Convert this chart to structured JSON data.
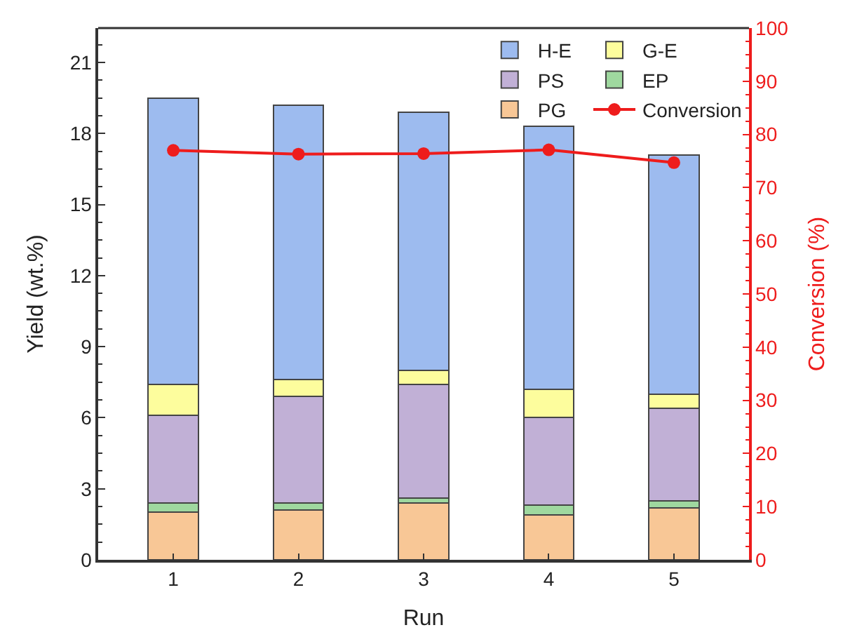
{
  "chart_data": {
    "type": "bar",
    "stacked": true,
    "xlabel": "Run",
    "ylabel": "Yield (wt.%)",
    "y2label": "Conversion (%)",
    "categories": [
      "1",
      "2",
      "3",
      "4",
      "5"
    ],
    "series": [
      {
        "name": "PG",
        "color": "#f8c796",
        "values": [
          2.0,
          2.1,
          2.4,
          1.9,
          2.2
        ]
      },
      {
        "name": "EP",
        "color": "#9fd89f",
        "values": [
          0.4,
          0.3,
          0.2,
          0.4,
          0.3
        ]
      },
      {
        "name": "PS",
        "color": "#c1b0d6",
        "values": [
          3.7,
          4.5,
          4.8,
          3.7,
          3.9
        ]
      },
      {
        "name": "G-E",
        "color": "#fdfd9d",
        "values": [
          1.3,
          0.7,
          0.6,
          1.2,
          0.6
        ]
      },
      {
        "name": "H-E",
        "color": "#9dbbef",
        "values": [
          12.1,
          11.6,
          10.9,
          11.1,
          10.1
        ]
      },
      {
        "name": "Conversion",
        "color": "#ee1c1c",
        "type": "line",
        "axis": "y2",
        "marker": "circle",
        "values": [
          77.0,
          76.3,
          76.4,
          77.1,
          74.7
        ]
      }
    ],
    "ylim": [
      0,
      22.45
    ],
    "yticks": [
      0,
      3,
      6,
      9,
      12,
      15,
      18,
      21
    ],
    "y2lim": [
      0,
      100
    ],
    "y2ticks": [
      0,
      10,
      20,
      30,
      40,
      50,
      60,
      70,
      80,
      90,
      100
    ],
    "legend": "top right"
  }
}
